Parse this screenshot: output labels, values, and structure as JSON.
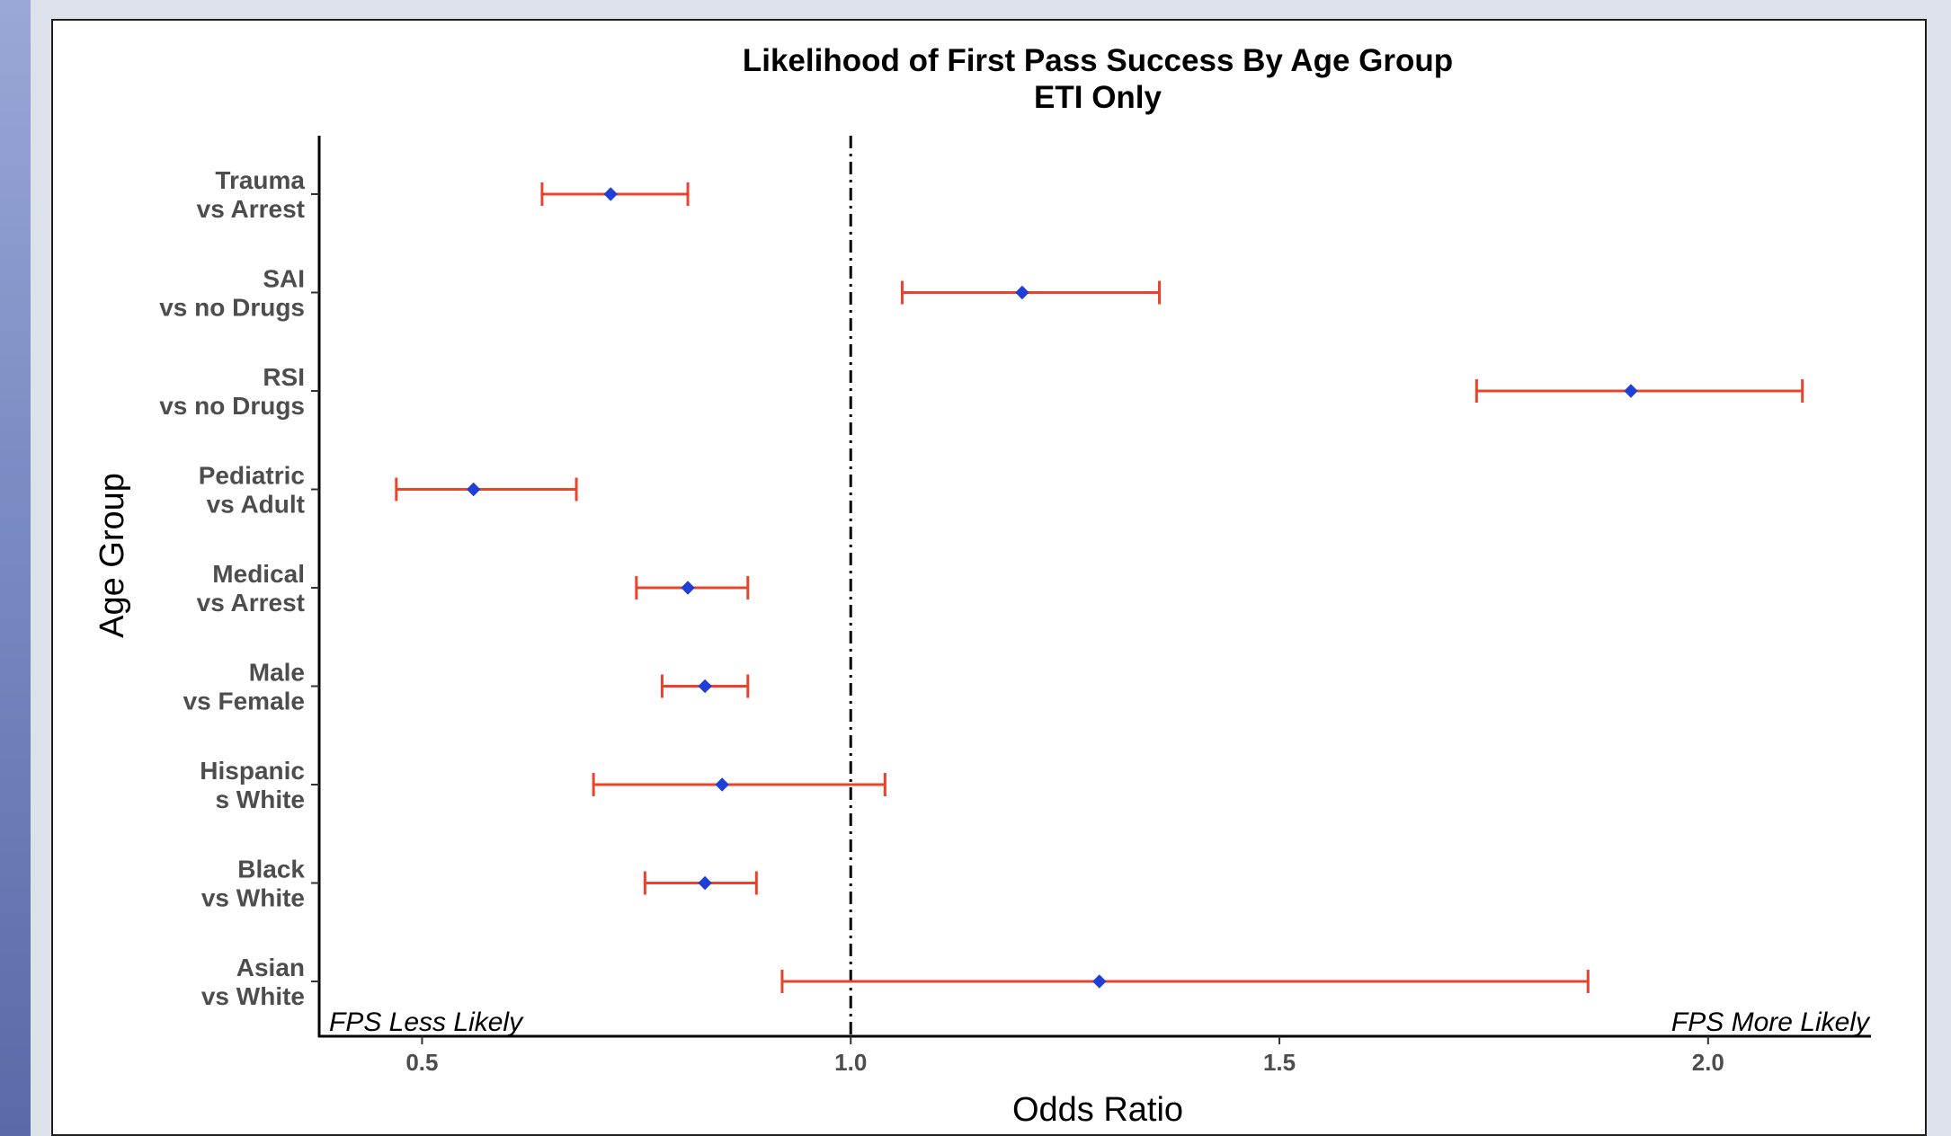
{
  "chart_data": {
    "type": "forest",
    "title": "Likelihood of First Pass Success By Age Group",
    "subtitle": "ETI Only",
    "xlabel": "Odds Ratio",
    "ylabel": "Age Group",
    "xlim": [
      0.38,
      2.19
    ],
    "xticks": [
      0.5,
      1.0,
      1.5,
      2.0
    ],
    "xtick_labels": [
      "0.5",
      "1.0",
      "1.5",
      "2.0"
    ],
    "reference_line": 1.0,
    "grid": false,
    "annotations": {
      "left": "FPS Less Likely",
      "right": "FPS More Likely"
    },
    "colors": {
      "ci": "#e8432d",
      "point": "#1f3fd6",
      "reference": "#000000"
    },
    "rows": [
      {
        "label": [
          "Trauma",
          "vs Arrest"
        ],
        "estimate": 0.72,
        "low": 0.64,
        "high": 0.81
      },
      {
        "label": [
          "SAI",
          "vs no Drugs"
        ],
        "estimate": 1.2,
        "low": 1.06,
        "high": 1.36
      },
      {
        "label": [
          "RSI",
          "vs no Drugs"
        ],
        "estimate": 1.91,
        "low": 1.73,
        "high": 2.11
      },
      {
        "label": [
          "Pediatric",
          "vs Adult"
        ],
        "estimate": 0.56,
        "low": 0.47,
        "high": 0.68
      },
      {
        "label": [
          "Medical",
          "vs Arrest"
        ],
        "estimate": 0.81,
        "low": 0.75,
        "high": 0.88
      },
      {
        "label": [
          "Male",
          "vs Female"
        ],
        "estimate": 0.83,
        "low": 0.78,
        "high": 0.88
      },
      {
        "label": [
          "Hispanic",
          "s White"
        ],
        "estimate": 0.85,
        "low": 0.7,
        "high": 1.04
      },
      {
        "label": [
          "Black",
          "vs White"
        ],
        "estimate": 0.83,
        "low": 0.76,
        "high": 0.89
      },
      {
        "label": [
          "Asian",
          "vs White"
        ],
        "estimate": 1.29,
        "low": 0.92,
        "high": 1.86
      }
    ]
  }
}
